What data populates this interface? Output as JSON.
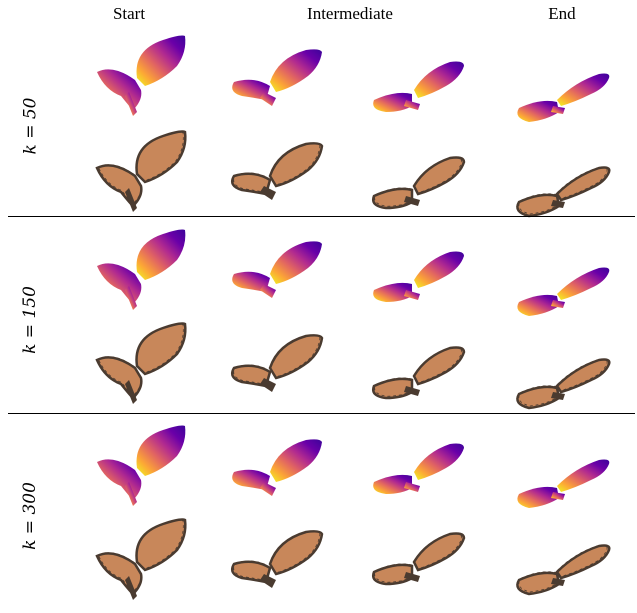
{
  "headers": {
    "start": "Start",
    "intermediate": "Intermediate",
    "end": "End"
  },
  "rows": [
    {
      "label": "k = 50"
    },
    {
      "label": "k = 150"
    },
    {
      "label": "k = 300"
    }
  ],
  "colors": {
    "plasma": [
      "#f0f921",
      "#fca636",
      "#e16462",
      "#b12a90",
      "#6a00a8",
      "#3b049a"
    ],
    "wing_orange": "#c8875a",
    "wing_dark": "#4a3b30",
    "separator": "#000000"
  }
}
